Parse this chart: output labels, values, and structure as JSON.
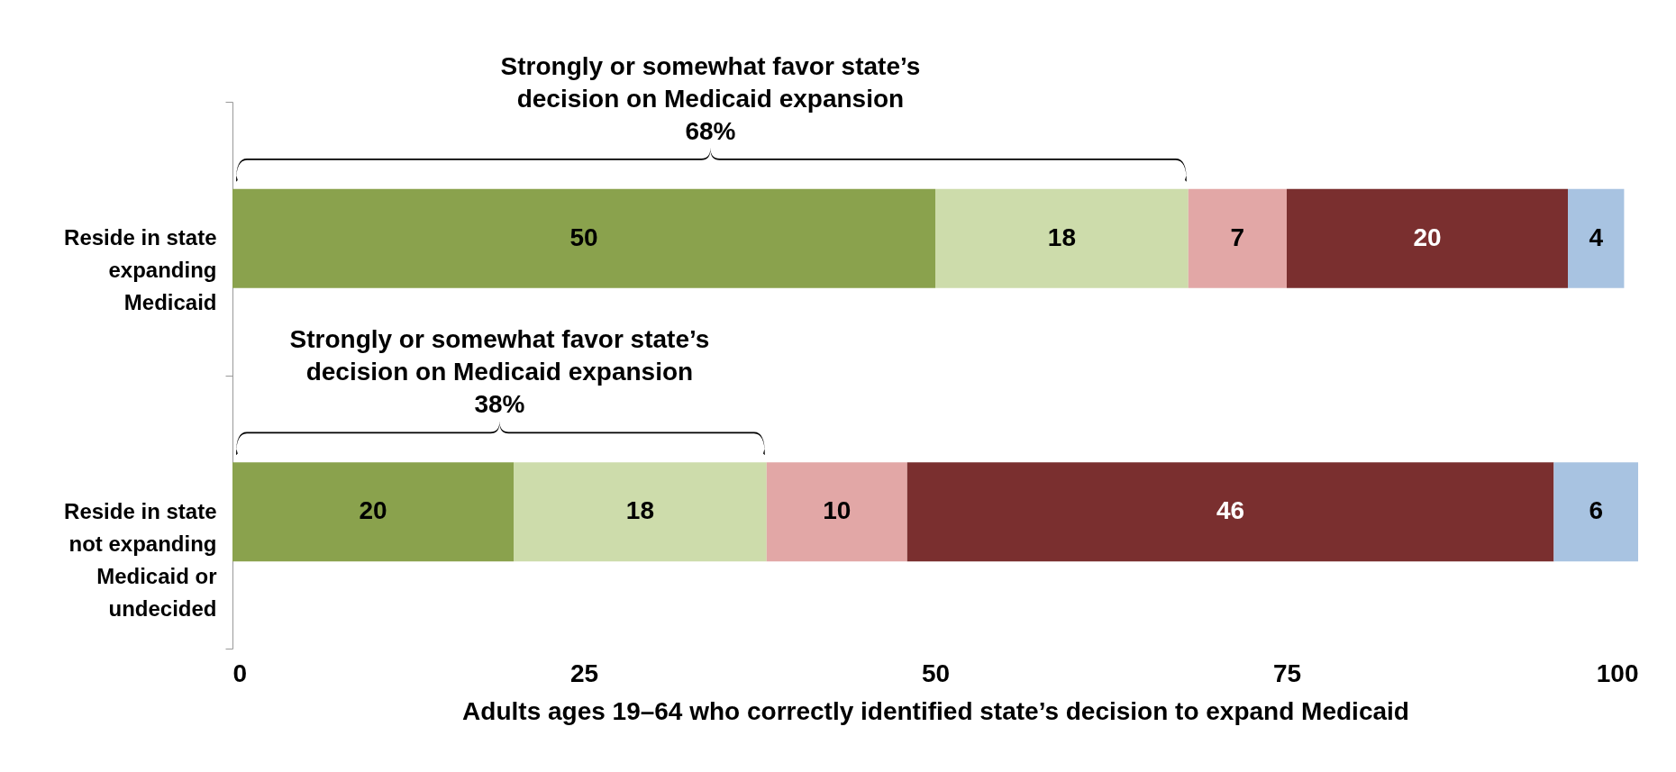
{
  "chart_data": {
    "type": "bar",
    "orientation": "horizontal",
    "stacked": true,
    "data_labels": true,
    "categories": [
      "Reside in state\nexpanding\nMedicaid",
      "Reside in state\nnot expanding\nMedicaid or\nundecided"
    ],
    "series": [
      {
        "color": "#8aa24d",
        "values": [
          50,
          20
        ]
      },
      {
        "color": "#cddcab",
        "values": [
          18,
          18
        ]
      },
      {
        "color": "#e2a7a6",
        "values": [
          7,
          10
        ]
      },
      {
        "color": "#7a2f2f",
        "values": [
          20,
          46
        ]
      },
      {
        "color": "#a8c3e1",
        "values": [
          4,
          6
        ]
      }
    ],
    "xlim": [
      0,
      100
    ],
    "xticks": [
      0,
      25,
      50,
      75,
      100
    ],
    "xlabel": "Adults ages 19–64 who correctly identified state’s decision to expand Medicaid",
    "annotations": [
      "Strongly or somewhat favor state’s\ndecision on Medicaid expansion\n68%",
      "Strongly or somewhat favor state’s\ndecision on Medicaid expansion\n38%"
    ]
  }
}
